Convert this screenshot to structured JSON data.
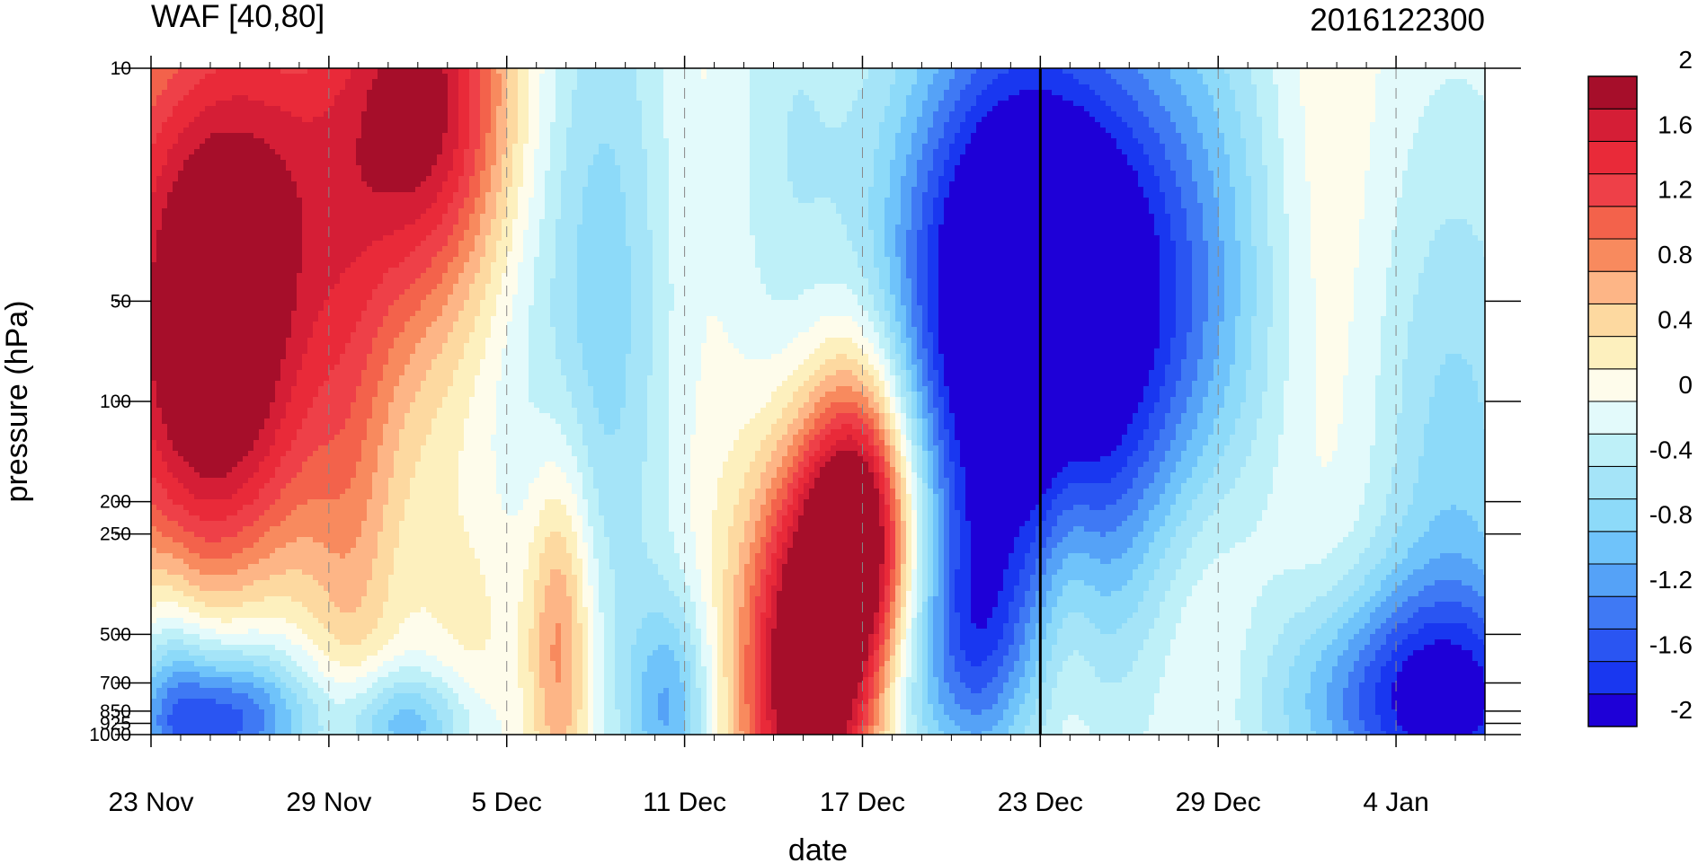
{
  "chart_data": {
    "type": "heatmap",
    "title": "WAF [40,80]",
    "subtitle": "2016122300",
    "xlabel": "date",
    "ylabel": "pressure (hPa)",
    "x_ticks": [
      {
        "label": "23 Nov",
        "day": 0
      },
      {
        "label": "29 Nov",
        "day": 6
      },
      {
        "label": "5 Dec",
        "day": 12
      },
      {
        "label": "11 Dec",
        "day": 18
      },
      {
        "label": "17 Dec",
        "day": 24
      },
      {
        "label": "23 Dec",
        "day": 30
      },
      {
        "label": "29 Dec",
        "day": 36
      },
      {
        "label": "4 Jan",
        "day": 42
      }
    ],
    "x_range_days": [
      0,
      45
    ],
    "y_scale": "log",
    "ylim": [
      1000,
      10
    ],
    "y_ticks": [
      {
        "label": "10",
        "value": 10
      },
      {
        "label": "50",
        "value": 50
      },
      {
        "label": "100",
        "value": 100
      },
      {
        "label": "200",
        "value": 200
      },
      {
        "label": "250",
        "value": 250
      },
      {
        "label": "500",
        "value": 500
      },
      {
        "label": "700",
        "value": 700
      },
      {
        "label": "850",
        "value": 850
      },
      {
        "label": "925",
        "value": 925
      },
      {
        "label": "1000",
        "value": 1000
      }
    ],
    "highlight_date": {
      "label": "23 Dec",
      "day": 30
    },
    "colorbar": {
      "levels": [
        -2,
        -1.8,
        -1.6,
        -1.4,
        -1.2,
        -1,
        -0.8,
        -0.6,
        -0.4,
        -0.2,
        0,
        0.2,
        0.4,
        0.6,
        0.8,
        1,
        1.2,
        1.4,
        1.6,
        1.8,
        2
      ],
      "labels": [
        {
          "text": "2",
          "value": 2
        },
        {
          "text": "1.6",
          "value": 1.6
        },
        {
          "text": "1.2",
          "value": 1.2
        },
        {
          "text": "0.8",
          "value": 0.8
        },
        {
          "text": "0.4",
          "value": 0.4
        },
        {
          "text": "0",
          "value": 0
        },
        {
          "text": "-0.4",
          "value": -0.4
        },
        {
          "text": "-0.8",
          "value": -0.8
        },
        {
          "text": "-1.2",
          "value": -1.2
        },
        {
          "text": "-1.6",
          "value": -1.6
        },
        {
          "text": "-2",
          "value": -2
        }
      ],
      "colors": [
        "#1E00D7",
        "#1937F0",
        "#2A55F2",
        "#3F79F4",
        "#55A2F7",
        "#6FC3FA",
        "#8DDAF9",
        "#A5E4F8",
        "#BEF0F8",
        "#E3FAFB",
        "#FEFCEB",
        "#FDF0BE",
        "#FDD9A0",
        "#FDB586",
        "#F88A5E",
        "#F3624B",
        "#EE4048",
        "#E92A39",
        "#D51E36",
        "#A60E2A"
      ]
    },
    "field_features": [
      {
        "day": 1.2,
        "pressure": 65,
        "value": 1.3,
        "sx": 2.8,
        "sy": 0.6
      },
      {
        "day": 3.0,
        "pressure": 20,
        "value": 0.9,
        "sx": 3.0,
        "sy": 0.5
      },
      {
        "day": 9.5,
        "pressure": 12,
        "value": 1.4,
        "sx": 2.0,
        "sy": 0.4
      },
      {
        "day": 7.5,
        "pressure": 22,
        "value": 0.7,
        "sx": 3.0,
        "sy": 0.7
      },
      {
        "day": 2.5,
        "pressure": 180,
        "value": 0.8,
        "sx": 2.2,
        "sy": 0.5
      },
      {
        "day": 6.8,
        "pressure": 260,
        "value": 0.4,
        "sx": 1.0,
        "sy": 0.6
      },
      {
        "day": 11.0,
        "pressure": 500,
        "value": 0.3,
        "sx": 1.2,
        "sy": 0.3
      },
      {
        "day": 2.5,
        "pressure": 900,
        "value": -1.5,
        "sx": 2.0,
        "sy": 0.15
      },
      {
        "day": 3.2,
        "pressure": 500,
        "value": -0.6,
        "sx": 1.6,
        "sy": 0.3
      },
      {
        "day": 8.5,
        "pressure": 930,
        "value": -1.0,
        "sx": 1.6,
        "sy": 0.12
      },
      {
        "day": 13.8,
        "pressure": 500,
        "value": 1.1,
        "sx": 0.8,
        "sy": 0.4
      },
      {
        "day": 14.5,
        "pressure": 60,
        "value": -0.5,
        "sx": 2.5,
        "sy": 0.8
      },
      {
        "day": 15.5,
        "pressure": 30,
        "value": -0.3,
        "sx": 1.5,
        "sy": 1.0
      },
      {
        "day": 17.5,
        "pressure": 850,
        "value": -1.0,
        "sx": 1.0,
        "sy": 0.25
      },
      {
        "day": 18.5,
        "pressure": 40,
        "value": 0.2,
        "sx": 1.5,
        "sy": 1.2
      },
      {
        "day": 21.5,
        "pressure": 25,
        "value": -0.4,
        "sx": 1.5,
        "sy": 1.0
      },
      {
        "day": 22.0,
        "pressure": 650,
        "value": 1.9,
        "sx": 1.5,
        "sy": 0.45
      },
      {
        "day": 24.0,
        "pressure": 250,
        "value": 2.1,
        "sx": 1.3,
        "sy": 0.35
      },
      {
        "day": 23.3,
        "pressure": 350,
        "value": 0.8,
        "sx": 2.2,
        "sy": 0.8
      },
      {
        "day": 27.5,
        "pressure": 70,
        "value": -1.2,
        "sx": 3.5,
        "sy": 0.6
      },
      {
        "day": 30.5,
        "pressure": 50,
        "value": -1.2,
        "sx": 3.0,
        "sy": 0.5
      },
      {
        "day": 29.0,
        "pressure": 20,
        "value": -0.7,
        "sx": 2.5,
        "sy": 0.7
      },
      {
        "day": 28.0,
        "pressure": 500,
        "value": -1.0,
        "sx": 1.2,
        "sy": 0.3
      },
      {
        "day": 25.5,
        "pressure": 700,
        "value": -0.8,
        "sx": 1.5,
        "sy": 0.3
      },
      {
        "day": 31.0,
        "pressure": 350,
        "value": 0.3,
        "sx": 0.7,
        "sy": 0.5
      },
      {
        "day": 34.0,
        "pressure": 70,
        "value": -0.6,
        "sx": 3.0,
        "sy": 0.8
      },
      {
        "day": 34.5,
        "pressure": 30,
        "value": -0.4,
        "sx": 3.0,
        "sy": 0.7
      },
      {
        "day": 35.5,
        "pressure": 450,
        "value": 0.5,
        "sx": 1.6,
        "sy": 0.4
      },
      {
        "day": 39.5,
        "pressure": 30,
        "value": 0.3,
        "sx": 1.5,
        "sy": 1.0
      },
      {
        "day": 43.0,
        "pressure": 800,
        "value": -1.6,
        "sx": 3.5,
        "sy": 0.25
      },
      {
        "day": 44.0,
        "pressure": 200,
        "value": -0.7,
        "sx": 2.0,
        "sy": 0.8
      },
      {
        "day": 0.6,
        "pressure": 700,
        "value": -0.8,
        "sx": 1.0,
        "sy": 0.3
      }
    ]
  }
}
